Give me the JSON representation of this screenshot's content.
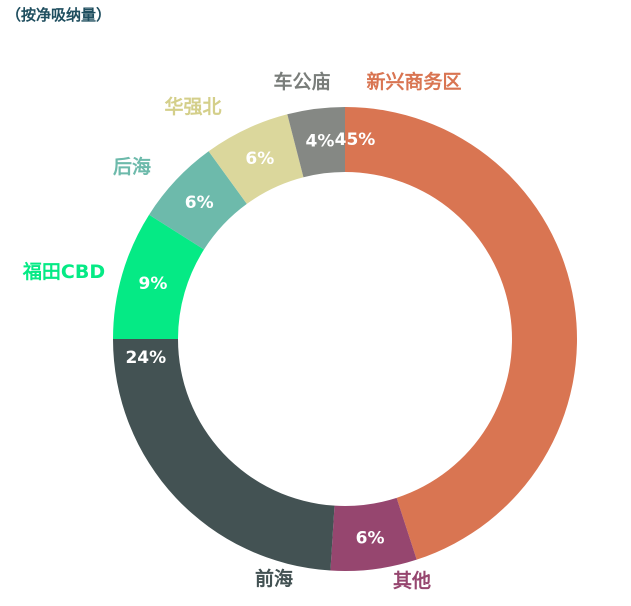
{
  "title": "（按净吸纳量）",
  "chart_data": {
    "type": "pie",
    "style": "donut",
    "title": "（按净吸纳量）",
    "slices": [
      {
        "label": "新兴商务区",
        "value": 45,
        "display": "45%",
        "color": "#d97552"
      },
      {
        "label": "其他",
        "value": 6,
        "display": "6%",
        "color": "#96466f"
      },
      {
        "label": "前海",
        "value": 24,
        "display": "24%",
        "color": "#435253"
      },
      {
        "label": "福田CBD",
        "value": 9,
        "display": "9%",
        "color": "#05ea85"
      },
      {
        "label": "后海",
        "value": 6,
        "display": "6%",
        "color": "#6dbaab"
      },
      {
        "label": "华强北",
        "value": 6,
        "display": "6%",
        "color": "#dbd79c"
      },
      {
        "label": "车公庙",
        "value": 4,
        "display": "4%",
        "color": "#858884"
      }
    ],
    "label_colors": [
      "#d97552",
      "#96466f",
      "#435253",
      "#05ea85",
      "#6dbaab",
      "#d4cf8a",
      "#797d7a"
    ]
  }
}
